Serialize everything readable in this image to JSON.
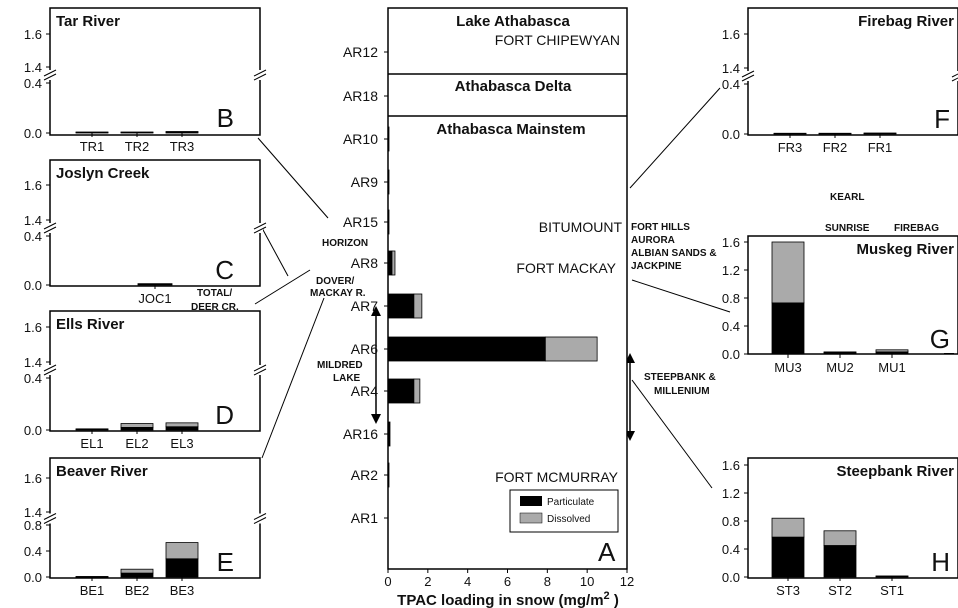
{
  "colors": {
    "particulate": "#000000",
    "dissolved": "#aaaaaa"
  },
  "chart_data": [
    {
      "id": "A",
      "type": "bar",
      "orientation": "horizontal",
      "stacked": true,
      "title": "",
      "xlabel": "TPAC loading in snow (mg/m",
      "xlabel_sup": "2",
      "xlabel_tail": " )",
      "xlim": [
        0,
        12
      ],
      "xticks": [
        "0",
        "2",
        "4",
        "6",
        "8",
        "10",
        "12"
      ],
      "categories": [
        "AR12",
        "AR18",
        "AR10",
        "AR9",
        "AR15",
        "AR8",
        "AR7",
        "AR6",
        "AR4",
        "AR16",
        "AR2",
        "AR1"
      ],
      "series": [
        {
          "name": "Particulate",
          "values": [
            0,
            0,
            0.05,
            0.05,
            0.05,
            0.2,
            1.3,
            7.9,
            1.3,
            0.1,
            0.05,
            0
          ]
        },
        {
          "name": "Dissolved",
          "values": [
            0,
            0,
            0,
            0,
            0,
            0.15,
            0.4,
            2.6,
            0.3,
            0,
            0,
            0
          ]
        }
      ],
      "panel_letter": "A",
      "sections": [
        "Lake Athabasca",
        "Athabasca Delta",
        "Athabasca Mainstem"
      ],
      "places": [
        "FORT CHIPEWYAN",
        "BITUMOUNT",
        "FORT MACKAY",
        "FORT MCMURRAY"
      ]
    },
    {
      "id": "B",
      "type": "bar",
      "stacked": true,
      "title": "Tar River",
      "panel_letter": "B",
      "ylim": [
        0,
        1.6
      ],
      "broken_axis": [
        0.4,
        1.4
      ],
      "yticks": [
        "0.0",
        "0.4",
        "1.4",
        "1.6"
      ],
      "categories": [
        "TR1",
        "TR2",
        "TR3"
      ],
      "series": [
        {
          "name": "Particulate",
          "values": [
            0.005,
            0.005,
            0.007
          ]
        },
        {
          "name": "Dissolved",
          "values": [
            0.003,
            0.003,
            0.005
          ]
        }
      ]
    },
    {
      "id": "C",
      "type": "bar",
      "stacked": true,
      "title": "Joslyn Creek",
      "panel_letter": "C",
      "ylim": [
        0,
        1.6
      ],
      "broken_axis": [
        0.4,
        1.4
      ],
      "yticks": [
        "0.0",
        "0.4",
        "1.4",
        "1.6"
      ],
      "categories": [
        "JOC1"
      ],
      "series": [
        {
          "name": "Particulate",
          "values": [
            0.007
          ]
        },
        {
          "name": "Dissolved",
          "values": [
            0.004
          ]
        }
      ]
    },
    {
      "id": "D",
      "type": "bar",
      "stacked": true,
      "title": "Ells River",
      "panel_letter": "D",
      "ylim": [
        0,
        1.6
      ],
      "broken_axis": [
        0.4,
        1.4
      ],
      "yticks": [
        "0.0",
        "0.4",
        "1.4",
        "1.6"
      ],
      "categories": [
        "EL1",
        "EL2",
        "EL3"
      ],
      "series": [
        {
          "name": "Particulate",
          "values": [
            0.005,
            0.02,
            0.025
          ]
        },
        {
          "name": "Dissolved",
          "values": [
            0.004,
            0.03,
            0.03
          ]
        }
      ]
    },
    {
      "id": "E",
      "type": "bar",
      "stacked": true,
      "title": "Beaver River",
      "panel_letter": "E",
      "ylim": [
        0,
        1.6
      ],
      "broken_axis": [
        0.8,
        1.4
      ],
      "yticks": [
        "0.0",
        "0.4",
        "0.8",
        "1.4",
        "1.6"
      ],
      "categories": [
        "BE1",
        "BE2",
        "BE3"
      ],
      "series": [
        {
          "name": "Particulate",
          "values": [
            0.005,
            0.06,
            0.28
          ]
        },
        {
          "name": "Dissolved",
          "values": [
            0.003,
            0.06,
            0.25
          ]
        }
      ]
    },
    {
      "id": "F",
      "type": "bar",
      "stacked": true,
      "title": "Firebag River",
      "panel_letter": "F",
      "ylim": [
        0,
        1.6
      ],
      "broken_axis": [
        0.4,
        1.4
      ],
      "yticks": [
        "0.0",
        "0.4",
        "1.4",
        "1.6"
      ],
      "categories": [
        "FR3",
        "FR2",
        "FR1"
      ],
      "series": [
        {
          "name": "Particulate",
          "values": [
            0.004,
            0.004,
            0.005
          ]
        },
        {
          "name": "Dissolved",
          "values": [
            0.002,
            0.002,
            0.003
          ]
        }
      ]
    },
    {
      "id": "G",
      "type": "bar",
      "stacked": true,
      "title": "Muskeg River",
      "panel_letter": "G",
      "ylim": [
        0,
        1.6
      ],
      "yticks": [
        "0.0",
        "0.4",
        "0.8",
        "1.2",
        "1.6"
      ],
      "categories": [
        "MU3",
        "MU2",
        "MU1"
      ],
      "series": [
        {
          "name": "Particulate",
          "values": [
            0.73,
            0.02,
            0.03
          ]
        },
        {
          "name": "Dissolved",
          "values": [
            0.87,
            0.01,
            0.03
          ]
        }
      ]
    },
    {
      "id": "H",
      "type": "bar",
      "stacked": true,
      "title": "Steepbank River",
      "panel_letter": "H",
      "ylim": [
        0,
        1.6
      ],
      "yticks": [
        "0.0",
        "0.4",
        "0.8",
        "1.2",
        "1.6"
      ],
      "categories": [
        "ST3",
        "ST2",
        "ST1"
      ],
      "series": [
        {
          "name": "Particulate",
          "values": [
            0.57,
            0.45,
            0.01
          ]
        },
        {
          "name": "Dissolved",
          "values": [
            0.27,
            0.21,
            0.005
          ]
        }
      ]
    }
  ],
  "annotations": {
    "horizon": "HORIZON",
    "dover_1": "DOVER/",
    "dover_2": "MACKAY R.",
    "total_1": "TOTAL/",
    "total_2": "DEER CR.",
    "mildred_1": "MILDRED",
    "mildred_2": "LAKE",
    "kearl": "KEARL",
    "sunrise": "SUNRISE",
    "firebag": "FIREBAG",
    "fh_1": "FORT HILLS",
    "fh_2": "AURORA",
    "fh_3": "ALBIAN SANDS &",
    "fh_4": "JACKPINE",
    "steep_1": "STEEPBANK &",
    "steep_2": "MILLENIUM"
  },
  "legend": {
    "particulate": "Particulate",
    "dissolved": "Dissolved"
  }
}
